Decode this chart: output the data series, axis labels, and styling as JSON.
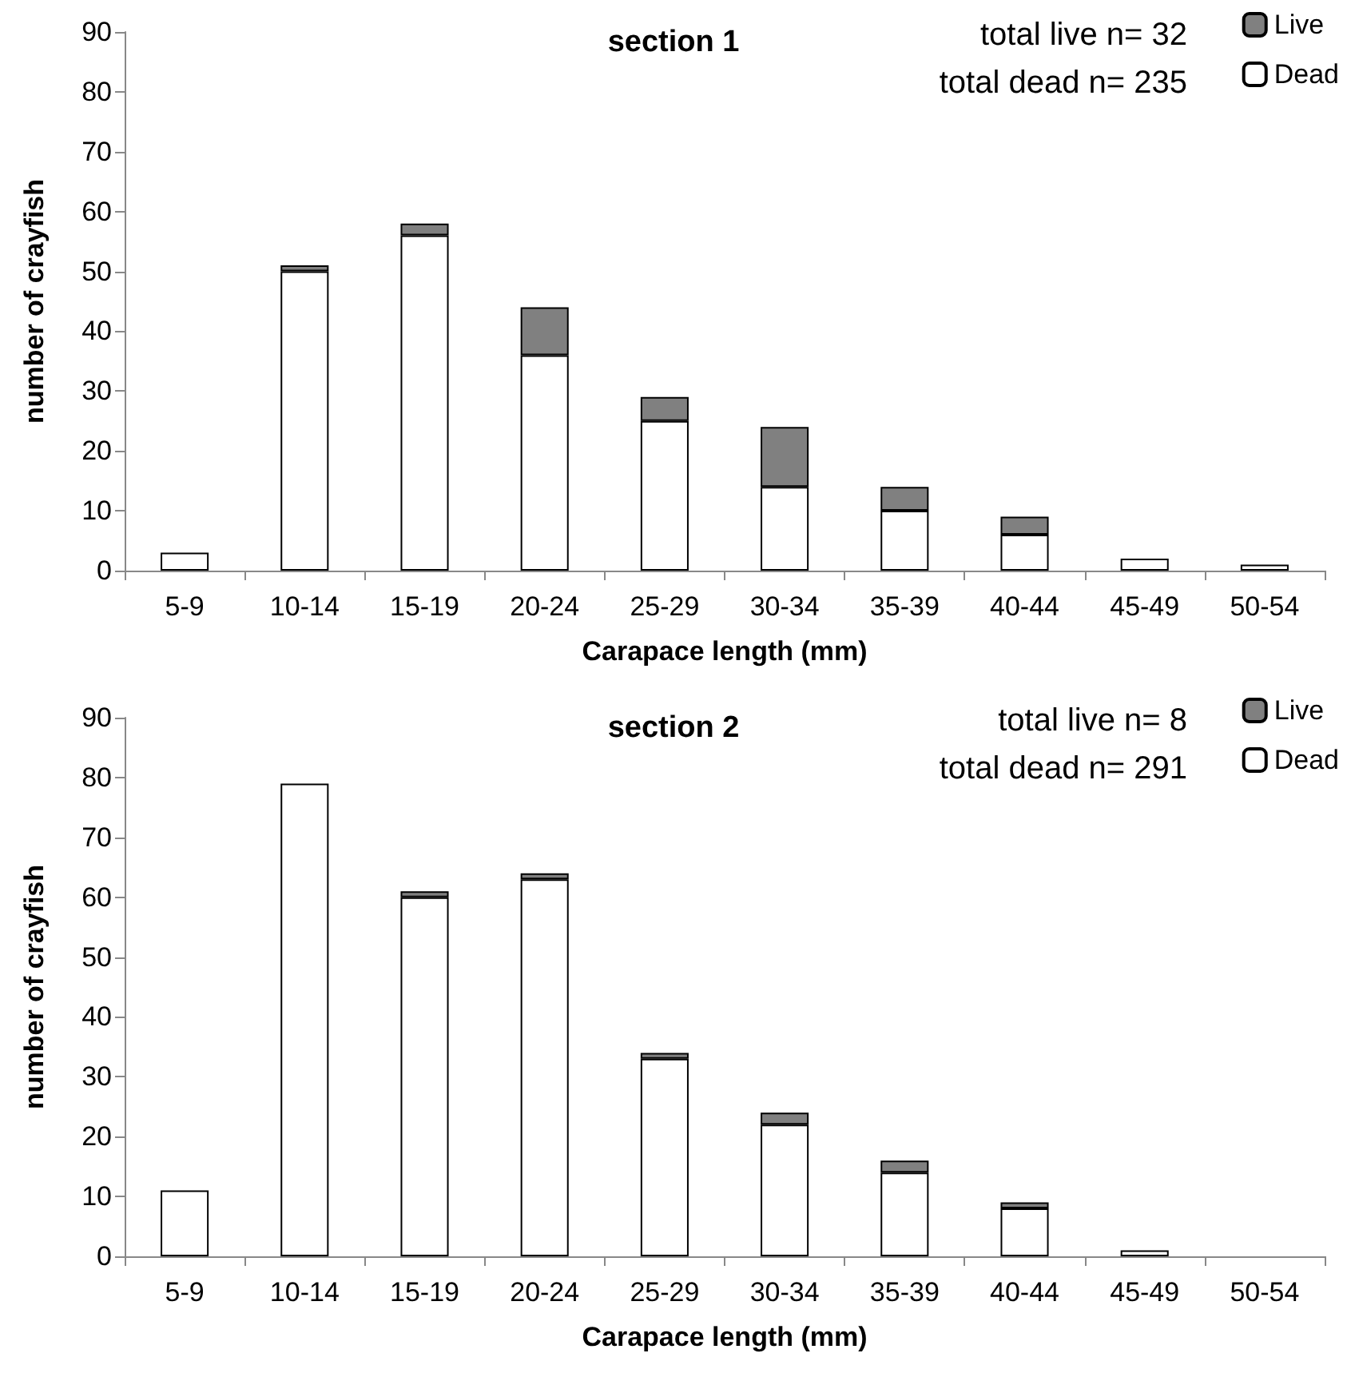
{
  "chart_data": [
    {
      "type": "bar",
      "title": "section 1",
      "xlabel": "Carapace length (mm)",
      "ylabel": "number of crayfish",
      "categories": [
        "5-9",
        "10-14",
        "15-19",
        "20-24",
        "25-29",
        "30-34",
        "35-39",
        "40-44",
        "45-49",
        "50-54"
      ],
      "series": [
        {
          "name": "Dead",
          "color": "#ffffff",
          "values": [
            3,
            50,
            56,
            36,
            25,
            14,
            10,
            6,
            2,
            1
          ]
        },
        {
          "name": "Live",
          "color": "#808080",
          "values": [
            0,
            1,
            2,
            8,
            4,
            10,
            4,
            3,
            0,
            0
          ]
        }
      ],
      "stacked": true,
      "ylim": [
        0,
        90
      ],
      "yticks": [
        0,
        10,
        20,
        30,
        40,
        50,
        60,
        70,
        80,
        90
      ],
      "grid": false,
      "legend": "top right",
      "annotations": [
        "total live n= 32",
        "total dead n= 235"
      ]
    },
    {
      "type": "bar",
      "title": "section 2",
      "xlabel": "Carapace length (mm)",
      "ylabel": "number of crayfish",
      "categories": [
        "5-9",
        "10-14",
        "15-19",
        "20-24",
        "25-29",
        "30-34",
        "35-39",
        "40-44",
        "45-49",
        "50-54"
      ],
      "series": [
        {
          "name": "Dead",
          "color": "#ffffff",
          "values": [
            11,
            79,
            60,
            63,
            33,
            22,
            14,
            8,
            1,
            0
          ]
        },
        {
          "name": "Live",
          "color": "#808080",
          "values": [
            0,
            0,
            1,
            1,
            1,
            2,
            2,
            1,
            0,
            0
          ]
        }
      ],
      "stacked": true,
      "ylim": [
        0,
        90
      ],
      "yticks": [
        0,
        10,
        20,
        30,
        40,
        50,
        60,
        70,
        80,
        90
      ],
      "grid": false,
      "legend": "top right",
      "annotations": [
        "total live n= 8",
        "total dead n= 291"
      ]
    }
  ]
}
